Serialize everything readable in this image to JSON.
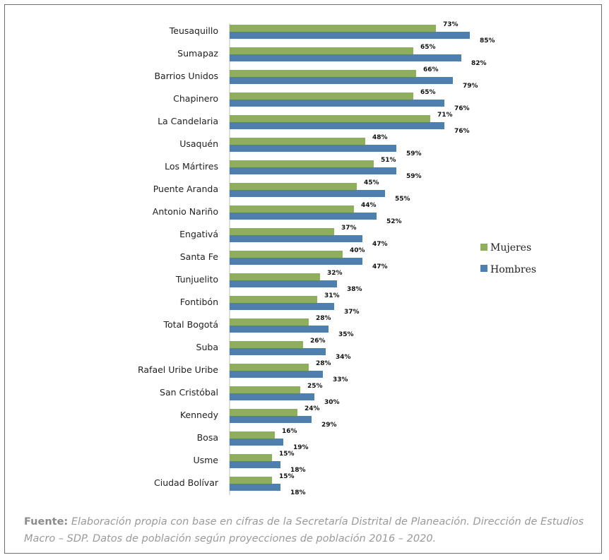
{
  "chart_data": {
    "type": "bar",
    "orientation": "horizontal",
    "categories": [
      "Teusaquillo",
      "Sumapaz",
      "Barrios Unidos",
      "Chapinero",
      "La Candelaria",
      "Usaquén",
      "Los Mártires",
      "Puente Aranda",
      "Antonio Nariño",
      "Engativá",
      "Santa Fe",
      "Tunjuelito",
      "Fontibón",
      "Total Bogotá",
      "Suba",
      "Rafael Uribe Uribe",
      "San Cristóbal",
      "Kennedy",
      "Bosa",
      "Usme",
      "Ciudad Bolívar"
    ],
    "series": [
      {
        "name": "Mujeres",
        "color": "#8fae5d",
        "values": [
          73,
          65,
          66,
          65,
          71,
          48,
          51,
          45,
          44,
          37,
          40,
          32,
          31,
          28,
          26,
          28,
          25,
          24,
          16,
          15,
          15
        ],
        "labels": [
          "73%",
          "65%",
          "66%",
          "65%",
          "71%",
          "48%",
          "51%",
          "45%",
          "44%",
          "37%",
          "40%",
          "32%",
          "31%",
          "28%",
          "26%",
          "28%",
          "25%",
          "24%",
          "16%",
          "15%",
          "15%"
        ]
      },
      {
        "name": "Hombres",
        "color": "#4f80ad",
        "values": [
          85,
          82,
          79,
          76,
          76,
          59,
          59,
          55,
          52,
          47,
          47,
          38,
          37,
          35,
          34,
          33,
          30,
          29,
          19,
          18,
          18
        ],
        "labels": [
          "85%",
          "82%",
          "79%",
          "76%",
          "76%",
          "59%",
          "59%",
          "55%",
          "52%",
          "47%",
          "47%",
          "38%",
          "37%",
          "35%",
          "34%",
          "33%",
          "30%",
          "29%",
          "19%",
          "18%",
          "18%"
        ]
      }
    ],
    "xlim": [
      0,
      100
    ],
    "grid": false,
    "legend_position": "right",
    "title": "",
    "xlabel": "",
    "ylabel": ""
  },
  "source": {
    "label": "Fuente:",
    "text": "Elaboración propia con base en cifras de la Secretaría Distrital de Planeación. Dirección de Estudios Macro – SDP. Datos de población según proyecciones de población 2016 – 2020."
  }
}
